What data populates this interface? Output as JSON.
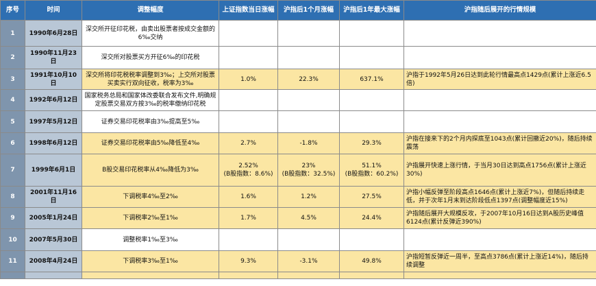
{
  "headers": [
    "序号",
    "时间",
    "调整幅度",
    "上证指数当日涨幅",
    "沪指后1个月涨幅",
    "沪指后1年最大涨幅",
    "沪指随后展开的行情规模"
  ],
  "rows": [
    {
      "no": "1",
      "date": "1990年6月28日",
      "adj": "深交所开征印花税，由卖出股票者按成交金额的6‰交纳",
      "d1": "",
      "m1": "",
      "y1": "",
      "trend": "",
      "hl": false
    },
    {
      "no": "2",
      "date": "1990年11月23日",
      "adj": "深交所对股票买方开征6‰的印花税",
      "d1": "",
      "m1": "",
      "y1": "",
      "trend": "",
      "hl": false
    },
    {
      "no": "3",
      "date": "1991年10月10日",
      "adj": "深交所将印花税税率调整到3‰；上交所对股票买卖实行双向征收，税率为3‰",
      "d1": "1.0%",
      "m1": "22.3%",
      "y1": "637.1%",
      "trend": "沪指于1992年5月26日达到此轮行情最高点1429点(累计上涨近6.5倍)",
      "hl": true
    },
    {
      "no": "4",
      "date": "1992年6月12日",
      "adj": "国家税务总局和国家体改委联合发布文件,明确规定股票交易双方按3‰的税率缴纳印花税",
      "d1": "",
      "m1": "",
      "y1": "",
      "trend": "",
      "hl": false
    },
    {
      "no": "5",
      "date": "1997年5月12日",
      "adj": "证券交易印花税率由3‰提高至5‰",
      "d1": "",
      "m1": "",
      "y1": "",
      "trend": "",
      "hl": false
    },
    {
      "no": "6",
      "date": "1998年6月12日",
      "adj": "证券交易印花税率由5‰降低至4‰",
      "d1": "2.7%",
      "m1": "-1.8%",
      "y1": "29.3%",
      "trend": "沪指在接来下的2个月内探底至1043点(累计回撤近20%)，随后持续震荡",
      "hl": true
    },
    {
      "no": "7",
      "date": "1999年6月1日",
      "adj": "B股交易印花税率从4‰降低为3‰",
      "d1": "2.52%\n(B股指数：8.6%)",
      "m1": "23%\n(B股指数：32.5%)",
      "y1": "51.1%\n(B股指数：60.2%)",
      "trend": "沪指展开快速上涨行情，于当月30日达到高点1756点(累计上涨近30%)",
      "hl": true
    },
    {
      "no": "8",
      "date": "2001年11月16日",
      "adj": "下调税率4‰至2‰",
      "d1": "1.6%",
      "m1": "1.2%",
      "y1": "27.5%",
      "trend": "沪指小幅反弹至阶段高点1646点(累计上涨近7%)，但随后持续走低，并于次年1月末到达阶段低点1397点(调整幅度近15%)",
      "hl": true
    },
    {
      "no": "9",
      "date": "2005年1月24日",
      "adj": "下调税率2‰至1‰",
      "d1": "1.7%",
      "m1": "4.5%",
      "y1": "24.4%",
      "trend": "沪指随后展开大规模反攻，于2007年10月16日达到A股历史峰值6124点(累计反弹近390%)",
      "hl": true
    },
    {
      "no": "10",
      "date": "2007年5月30日",
      "adj": "调整税率1‰至3‰",
      "d1": "",
      "m1": "",
      "y1": "",
      "trend": "",
      "hl": false
    },
    {
      "no": "11",
      "date": "2008年4月24日",
      "adj": "下调税率3‰至1‰",
      "d1": "9.3%",
      "m1": "-3.1%",
      "y1": "49.8%",
      "trend": "沪指短暂反弹近一周半，至高点3786点(累计上涨近14%)，随后持续调整",
      "hl": true
    },
    {
      "no": "",
      "date": "",
      "adj": "",
      "d1": "",
      "m1": "",
      "y1": "",
      "trend": "",
      "hl": true
    }
  ]
}
